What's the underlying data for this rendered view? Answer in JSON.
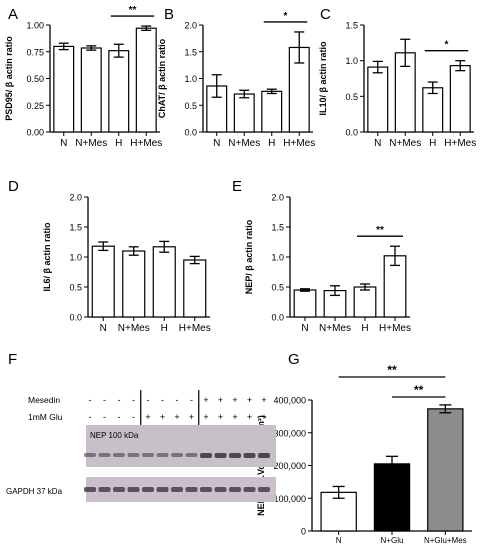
{
  "chart_data": [
    {
      "panel": "A",
      "type": "bar",
      "ylabel": "PSD95/ β actin ratio",
      "ylim": [
        0,
        1.0
      ],
      "yticks": [
        "0.00",
        "0.25",
        "0.50",
        "0.75",
        "1.00"
      ],
      "categories": [
        "N",
        "N+Mes",
        "H",
        "H+Mes"
      ],
      "values": [
        0.8,
        0.785,
        0.76,
        0.97
      ],
      "errors": [
        0.03,
        0.02,
        0.06,
        0.02
      ],
      "significance": [
        {
          "from": 2,
          "to": 3,
          "label": "**"
        }
      ]
    },
    {
      "panel": "B",
      "type": "bar",
      "ylabel": "ChAT/ β actin ratio",
      "ylim": [
        0,
        2.0
      ],
      "yticks": [
        "0.0",
        "0.5",
        "1.0",
        "1.5",
        "2.0"
      ],
      "categories": [
        "N",
        "N+Mes",
        "H",
        "H+Mes"
      ],
      "values": [
        0.86,
        0.71,
        0.76,
        1.58
      ],
      "errors": [
        0.21,
        0.07,
        0.04,
        0.29
      ],
      "significance": [
        {
          "from": 2,
          "to": 3,
          "label": "*"
        }
      ]
    },
    {
      "panel": "C",
      "type": "bar",
      "ylabel": "IL10/ β actin ratio",
      "ylim": [
        0,
        1.5
      ],
      "yticks": [
        "0.0",
        "0.5",
        "1.0",
        "1.5"
      ],
      "categories": [
        "N",
        "N+Mes",
        "H",
        "H+Mes"
      ],
      "values": [
        0.91,
        1.11,
        0.62,
        0.93
      ],
      "errors": [
        0.08,
        0.19,
        0.08,
        0.07
      ],
      "significance": [
        {
          "from": 2,
          "to": 3,
          "label": "*"
        }
      ]
    },
    {
      "panel": "D",
      "type": "bar",
      "ylabel": "IL6/ β actin ratio",
      "ylim": [
        0,
        2.0
      ],
      "yticks": [
        "0.0",
        "0.5",
        "1.0",
        "1.5",
        "2.0"
      ],
      "categories": [
        "N",
        "N+Mes",
        "H",
        "H+Mes"
      ],
      "values": [
        1.18,
        1.1,
        1.17,
        0.95
      ],
      "errors": [
        0.07,
        0.07,
        0.09,
        0.06
      ],
      "significance": []
    },
    {
      "panel": "E",
      "type": "bar",
      "ylabel": "NEP/ β actin ratio",
      "ylim": [
        0,
        2.0
      ],
      "yticks": [
        "0.0",
        "0.5",
        "1.0",
        "1.5",
        "2.0"
      ],
      "categories": [
        "N",
        "N+Mes",
        "H",
        "H+Mes"
      ],
      "values": [
        0.45,
        0.44,
        0.5,
        1.02
      ],
      "errors": [
        0.02,
        0.08,
        0.05,
        0.16
      ],
      "significance": [
        {
          "from": 2,
          "to": 3,
          "label": "**"
        }
      ]
    },
    {
      "panel": "G",
      "type": "bar",
      "ylabel": "NEP (Adj.Vol. INTxmm²)",
      "ylim": [
        0,
        400000
      ],
      "yticks": [
        "0",
        "100,000",
        "200,000",
        "300,000",
        "400,000"
      ],
      "categories": [
        "N",
        "N+Glu",
        "N+Glu+Mes"
      ],
      "values": [
        118000,
        205000,
        373000
      ],
      "errors": [
        18000,
        23000,
        12000
      ],
      "colors": [
        "#ffffff",
        "#000000",
        "#8c8c8c"
      ],
      "significance": [
        {
          "from": 0,
          "to": 2,
          "label": "**"
        },
        {
          "from": 1,
          "to": 2,
          "label": "**"
        }
      ]
    }
  ],
  "blot": {
    "panel": "F",
    "row_labels": [
      "Mesedin",
      "1mM Glu"
    ],
    "mesedin_signs": [
      "-",
      "-",
      "-",
      "-",
      "-",
      "-",
      "-",
      "-",
      "+",
      "+",
      "+",
      "+",
      "+"
    ],
    "glu_signs": [
      "-",
      "-",
      "-",
      "-",
      "+",
      "+",
      "+",
      "+",
      "+",
      "+",
      "+",
      "+",
      "+"
    ],
    "band_labels": [
      "NEP 100 kDa",
      "GAPDH 37 kDa"
    ]
  }
}
